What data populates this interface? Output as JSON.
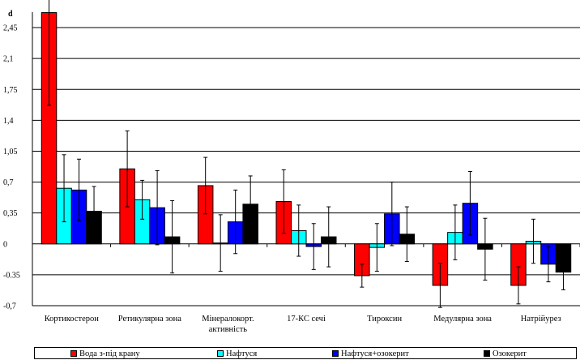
{
  "chart_data": {
    "type": "bar",
    "ylabel": "d",
    "ylim": [
      -0.7,
      2.625
    ],
    "yticks": [
      "-0,7",
      "-0.35",
      "0",
      "0,35",
      "0,7",
      "1,05",
      "1,4",
      "1,75",
      "2,1",
      "2,45"
    ],
    "ytick_values": [
      -0.7,
      -0.35,
      0,
      0.35,
      0.7,
      1.05,
      1.4,
      1.75,
      2.1,
      2.45
    ],
    "grid": true,
    "legend_position": "bottom",
    "categories": [
      [
        "Кортикостерон"
      ],
      [
        "Ретикулярна зона"
      ],
      [
        "Мінералокорт.",
        "активність"
      ],
      [
        "17-КС сечі"
      ],
      [
        "Тироксин"
      ],
      [
        "Медулярна зона"
      ],
      [
        "Натрійурез"
      ]
    ],
    "series": [
      {
        "name": "Вода з-під крану",
        "color": "#ff0000",
        "values": [
          2.62,
          0.85,
          0.66,
          0.48,
          -0.36,
          -0.47,
          -0.47
        ],
        "errors": [
          1.05,
          0.43,
          0.32,
          0.36,
          0.13,
          0.25,
          0.21
        ]
      },
      {
        "name": "Нафтуся",
        "color": "#00ffff",
        "values": [
          0.63,
          0.5,
          0.01,
          0.15,
          -0.04,
          0.13,
          0.03
        ],
        "errors": [
          0.38,
          0.22,
          0.32,
          0.29,
          0.27,
          0.31,
          0.25
        ]
      },
      {
        "name": "Нафтуся+озокерит",
        "color": "#0000ff",
        "values": [
          0.61,
          0.41,
          0.25,
          -0.03,
          0.34,
          0.46,
          -0.23
        ],
        "errors": [
          0.35,
          0.42,
          0.36,
          0.26,
          0.36,
          0.36,
          0.2
        ]
      },
      {
        "name": "Озокерит",
        "color": "#000000",
        "values": [
          0.37,
          0.08,
          0.45,
          0.08,
          0.11,
          -0.06,
          -0.32
        ],
        "errors": [
          0.28,
          0.41,
          0.32,
          0.34,
          0.31,
          0.35,
          0.2
        ]
      }
    ]
  }
}
